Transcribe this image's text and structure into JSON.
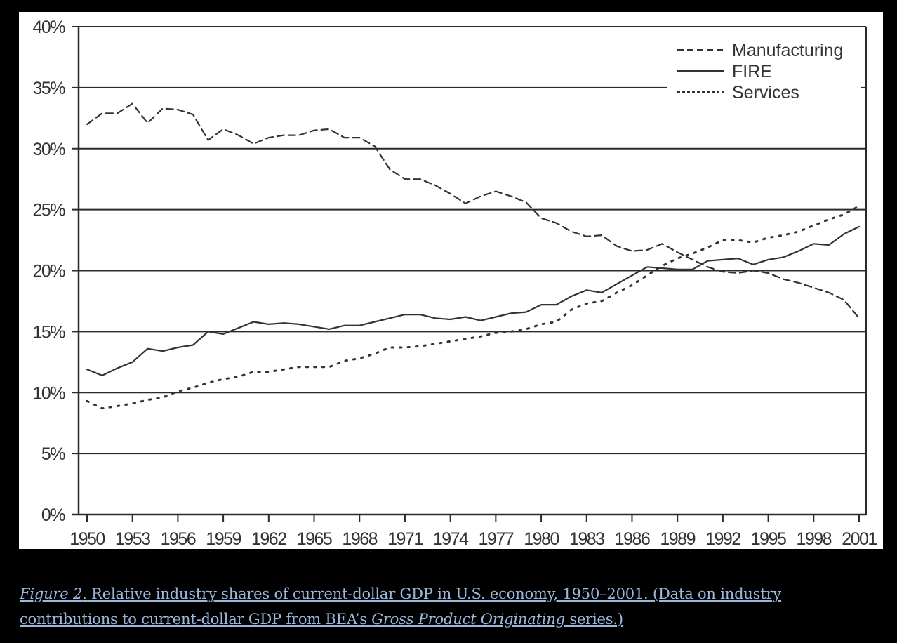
{
  "chart_data": {
    "type": "line",
    "title": "",
    "xlabel": "",
    "ylabel": "",
    "ylim": [
      0,
      40
    ],
    "xlim": [
      1950,
      2001
    ],
    "grid": true,
    "legend_position": "top-right",
    "yticks": [
      "0%",
      "5%",
      "10%",
      "15%",
      "20%",
      "25%",
      "30%",
      "35%",
      "40%"
    ],
    "ytick_values": [
      0,
      5,
      10,
      15,
      20,
      25,
      30,
      35,
      40
    ],
    "xticks": [
      "1950",
      "1953",
      "1956",
      "1959",
      "1962",
      "1965",
      "1968",
      "1971",
      "1974",
      "1977",
      "1980",
      "1983",
      "1986",
      "1989",
      "1992",
      "1995",
      "1998",
      "2001"
    ],
    "x": [
      1950,
      1951,
      1952,
      1953,
      1954,
      1955,
      1956,
      1957,
      1958,
      1959,
      1960,
      1961,
      1962,
      1963,
      1964,
      1965,
      1966,
      1967,
      1968,
      1969,
      1970,
      1971,
      1972,
      1973,
      1974,
      1975,
      1976,
      1977,
      1978,
      1979,
      1980,
      1981,
      1982,
      1983,
      1984,
      1985,
      1986,
      1987,
      1988,
      1989,
      1990,
      1991,
      1992,
      1993,
      1994,
      1995,
      1996,
      1997,
      1998,
      1999,
      2000,
      2001
    ],
    "series": [
      {
        "name": "Manufacturing",
        "style": "dashed",
        "values": [
          32.0,
          32.9,
          32.9,
          33.7,
          32.1,
          33.3,
          33.2,
          32.8,
          30.7,
          31.6,
          31.1,
          30.4,
          30.9,
          31.1,
          31.1,
          31.5,
          31.6,
          30.9,
          30.9,
          30.2,
          28.3,
          27.5,
          27.5,
          27.0,
          26.3,
          25.5,
          26.1,
          26.5,
          26.1,
          25.6,
          24.3,
          23.9,
          23.2,
          22.8,
          22.9,
          22.0,
          21.6,
          21.7,
          22.2,
          21.5,
          20.9,
          20.3,
          19.9,
          19.8,
          20.0,
          19.8,
          19.3,
          19.0,
          18.6,
          18.2,
          17.6,
          16.1
        ]
      },
      {
        "name": "FIRE",
        "style": "solid",
        "values": [
          11.9,
          11.4,
          12.0,
          12.5,
          13.6,
          13.4,
          13.7,
          13.9,
          15.0,
          14.8,
          15.3,
          15.8,
          15.6,
          15.7,
          15.6,
          15.4,
          15.2,
          15.5,
          15.5,
          15.8,
          16.1,
          16.4,
          16.4,
          16.1,
          16.0,
          16.2,
          15.9,
          16.2,
          16.5,
          16.6,
          17.2,
          17.2,
          17.9,
          18.4,
          18.2,
          18.9,
          19.6,
          20.3,
          20.2,
          20.1,
          20.1,
          20.8,
          20.9,
          21.0,
          20.5,
          20.9,
          21.1,
          21.6,
          22.2,
          22.1,
          23.0,
          23.6
        ]
      },
      {
        "name": "Services",
        "style": "dotted",
        "values": [
          9.3,
          8.7,
          8.9,
          9.1,
          9.4,
          9.6,
          10.1,
          10.4,
          10.8,
          11.1,
          11.3,
          11.7,
          11.7,
          11.9,
          12.1,
          12.1,
          12.1,
          12.6,
          12.8,
          13.2,
          13.7,
          13.7,
          13.8,
          14.0,
          14.2,
          14.4,
          14.6,
          14.9,
          15.0,
          15.2,
          15.6,
          15.8,
          16.8,
          17.3,
          17.5,
          18.2,
          18.8,
          19.6,
          20.4,
          21.0,
          21.4,
          21.9,
          22.5,
          22.5,
          22.3,
          22.7,
          22.9,
          23.2,
          23.7,
          24.2,
          24.6,
          25.3
        ]
      }
    ]
  },
  "legend": {
    "items": [
      {
        "label": "Manufacturing",
        "style": "dashed"
      },
      {
        "label": "FIRE",
        "style": "solid"
      },
      {
        "label": "Services",
        "style": "dotted"
      }
    ]
  },
  "caption": {
    "figure_label": "Figure 2",
    "text_part1": ". Relative industry shares of current-dollar GDP in U.S. economy, 1950–2001. (Data on industry contributions to current-dollar GDP from BEA’s ",
    "italic_source": "Gross Product Originating",
    "text_part2": " series.)"
  }
}
